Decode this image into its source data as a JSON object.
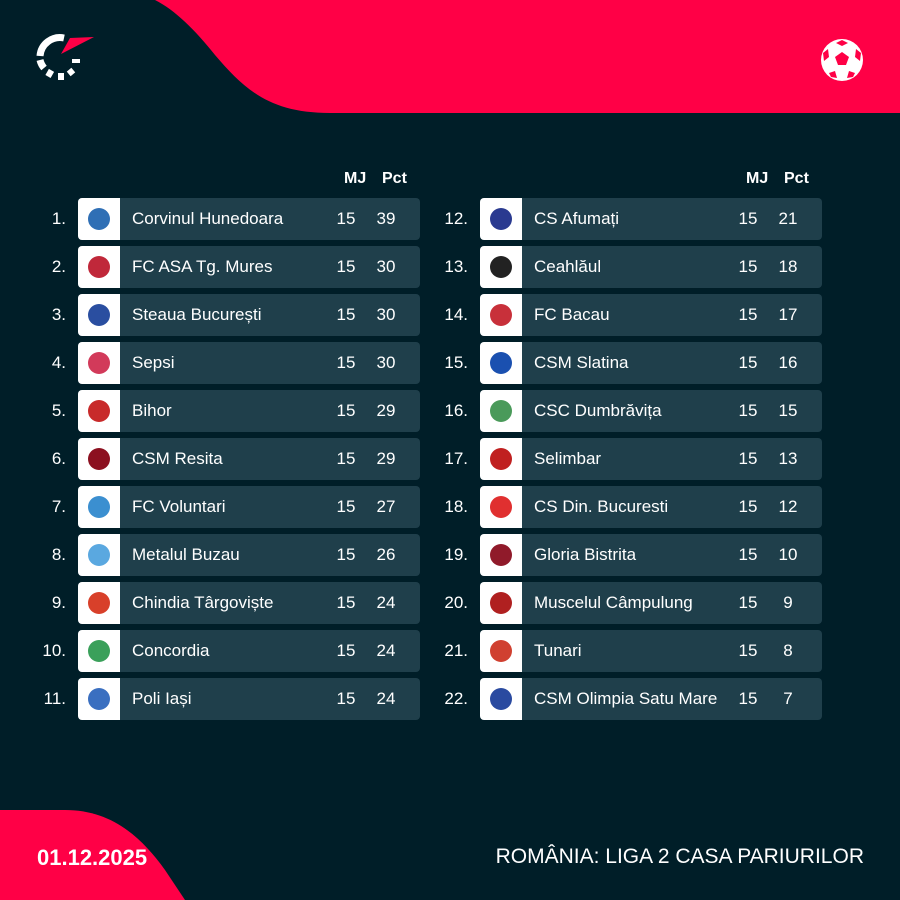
{
  "header": {
    "logo": "flashscore-logo",
    "sport_icon": "soccer-ball-icon"
  },
  "columns": {
    "played": "MJ",
    "points": "Pct"
  },
  "colors": {
    "background": "#001e28",
    "accent": "#ff0046",
    "row": "#1f3f4b"
  },
  "standings": [
    {
      "rank": "1.",
      "team": "Corvinul Hunedoara",
      "played": "15",
      "points": "39",
      "crest": "#2f6fb5"
    },
    {
      "rank": "2.",
      "team": "FC ASA Tg. Mures",
      "played": "15",
      "points": "30",
      "crest": "#c0283a"
    },
    {
      "rank": "3.",
      "team": "Steaua București",
      "played": "15",
      "points": "30",
      "crest": "#2a4ea0"
    },
    {
      "rank": "4.",
      "team": "Sepsi",
      "played": "15",
      "points": "30",
      "crest": "#d23a5a"
    },
    {
      "rank": "5.",
      "team": "Bihor",
      "played": "15",
      "points": "29",
      "crest": "#c82a2a"
    },
    {
      "rank": "6.",
      "team": "CSM Resita",
      "played": "15",
      "points": "29",
      "crest": "#8c1020"
    },
    {
      "rank": "7.",
      "team": "FC Voluntari",
      "played": "15",
      "points": "27",
      "crest": "#3b8fd0"
    },
    {
      "rank": "8.",
      "team": "Metalul Buzau",
      "played": "15",
      "points": "26",
      "crest": "#5aa8e0"
    },
    {
      "rank": "9.",
      "team": "Chindia Târgoviște",
      "played": "15",
      "points": "24",
      "crest": "#d8402a"
    },
    {
      "rank": "10.",
      "team": "Concordia",
      "played": "15",
      "points": "24",
      "crest": "#3aa05a"
    },
    {
      "rank": "11.",
      "team": "Poli Iași",
      "played": "15",
      "points": "24",
      "crest": "#3a6fc0"
    },
    {
      "rank": "12.",
      "team": "CS Afumați",
      "played": "15",
      "points": "21",
      "crest": "#2a3a90"
    },
    {
      "rank": "13.",
      "team": "Ceahlăul",
      "played": "15",
      "points": "18",
      "crest": "#222222"
    },
    {
      "rank": "14.",
      "team": "FC Bacau",
      "played": "15",
      "points": "17",
      "crest": "#c8303a"
    },
    {
      "rank": "15.",
      "team": "CSM Slatina",
      "played": "15",
      "points": "16",
      "crest": "#1a50b0"
    },
    {
      "rank": "16.",
      "team": "CSC Dumbrăvița",
      "played": "15",
      "points": "15",
      "crest": "#4a9a5a"
    },
    {
      "rank": "17.",
      "team": "Selimbar",
      "played": "15",
      "points": "13",
      "crest": "#c02020"
    },
    {
      "rank": "18.",
      "team": "CS Din. Bucuresti",
      "played": "15",
      "points": "12",
      "crest": "#e03030"
    },
    {
      "rank": "19.",
      "team": "Gloria Bistrita",
      "played": "15",
      "points": "10",
      "crest": "#901a2a"
    },
    {
      "rank": "20.",
      "team": "Muscelul Câmpulung",
      "played": "15",
      "points": "9",
      "crest": "#b02020"
    },
    {
      "rank": "21.",
      "team": "Tunari",
      "played": "15",
      "points": "8",
      "crest": "#d04030"
    },
    {
      "rank": "22.",
      "team": "CSM Olimpia Satu Mare",
      "played": "15",
      "points": "7",
      "crest": "#2a4aa0"
    }
  ],
  "footer": {
    "date": "01.12.2025",
    "league": "ROMÂNIA: LIGA 2 CASA PARIURILOR"
  }
}
